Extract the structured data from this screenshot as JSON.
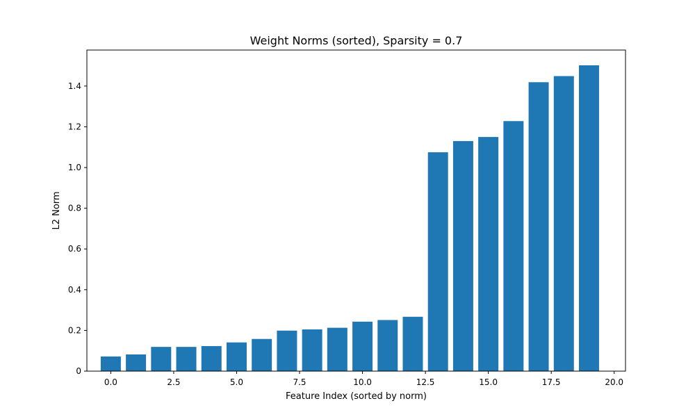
{
  "chart_data": {
    "type": "bar",
    "title": "Weight Norms (sorted), Sparsity = 0.7",
    "xlabel": "Feature Index (sorted by norm)",
    "ylabel": "L2 Norm",
    "x": [
      0,
      1,
      2,
      3,
      4,
      5,
      6,
      7,
      8,
      9,
      10,
      11,
      12,
      13,
      14,
      15,
      16,
      17,
      18,
      19
    ],
    "values": [
      0.072,
      0.082,
      0.119,
      0.119,
      0.123,
      0.141,
      0.158,
      0.199,
      0.205,
      0.213,
      0.243,
      0.251,
      0.267,
      1.075,
      1.13,
      1.15,
      1.228,
      1.419,
      1.449,
      1.502
    ],
    "xlim": [
      -0.95,
      20.45
    ],
    "ylim": [
      0,
      1.577
    ],
    "xticks": [
      0.0,
      2.5,
      5.0,
      7.5,
      10.0,
      12.5,
      15.0,
      17.5,
      20.0
    ],
    "xtick_labels": [
      "0.0",
      "2.5",
      "5.0",
      "7.5",
      "10.0",
      "12.5",
      "15.0",
      "17.5",
      "20.0"
    ],
    "yticks": [
      0,
      0.2,
      0.4,
      0.6,
      0.8,
      1.0,
      1.2,
      1.4
    ],
    "ytick_labels": [
      "0",
      "0.2",
      "0.4",
      "0.6",
      "0.8",
      "1.0",
      "1.2",
      "1.4"
    ],
    "bar_color": "#1f77b4",
    "grid": false
  }
}
